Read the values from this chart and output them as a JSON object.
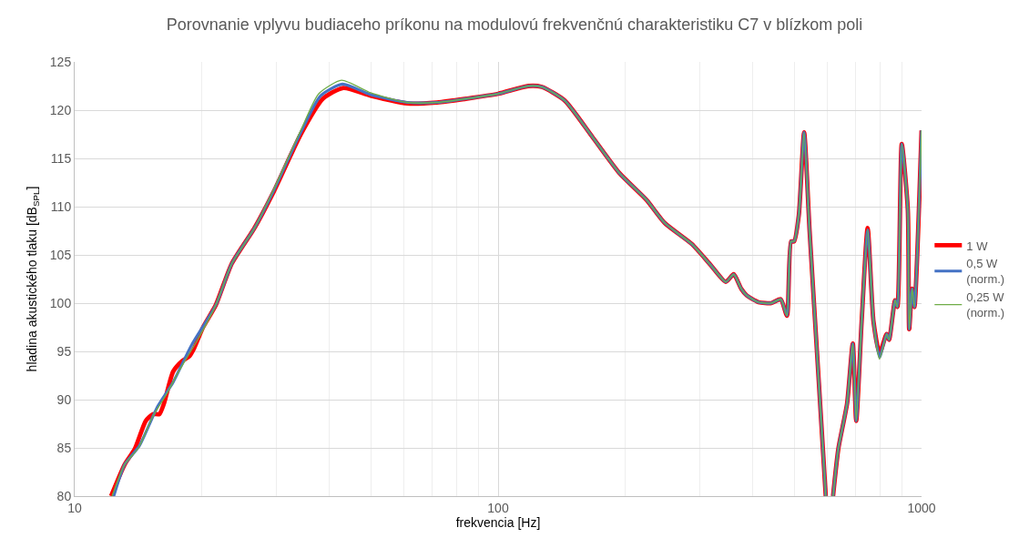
{
  "chart_data": {
    "type": "line",
    "title": "Porovnanie vplyvu budiaceho príkonu na modulovú frekvenčnú charakteristiku C7 v blízkom poli",
    "xlabel": "frekvencia [Hz]",
    "ylabel": "hladina akustického tlaku [dB$_{SPL}$]",
    "log": "x",
    "xlim": [
      10,
      1000
    ],
    "xticks": [
      10,
      100,
      1000
    ],
    "ylim": [
      80,
      125
    ],
    "yticks": [
      80,
      85,
      90,
      95,
      100,
      105,
      110,
      115,
      120,
      125
    ],
    "grid": true,
    "legend": "right",
    "line_style": "solid",
    "marker": "none",
    "series": [
      {
        "name": "1 W",
        "color": "#ff0000",
        "x": [
          12.19,
          13.13,
          13.87,
          14.72,
          15.31,
          15.85,
          16.25,
          17.08,
          17.94,
          18.66,
          19.13,
          20.1,
          21.54,
          23.5,
          26.6,
          29.4,
          34.2,
          38.6,
          43.1,
          50.0,
          61.0,
          71.7,
          84.5,
          100,
          117.8,
          126.9,
          143.6,
          166.5,
          193.2,
          224.1,
          247.5,
          287.1,
          316.9,
          345,
          360,
          375,
          386.4,
          412,
          442,
          465,
          481,
          492,
          500,
          513,
          528,
          544,
          572,
          594,
          null,
          618,
          636,
          667,
          688,
          701,
          722,
          746,
          770,
          796,
          827,
          838,
          866,
          877,
          898,
          928,
          935,
          950,
          962,
          1000
        ],
        "values": [
          80,
          83.3,
          84.9,
          87.8,
          88.5,
          88.5,
          89.6,
          92.9,
          94.0,
          94.5,
          95.3,
          97.5,
          99.8,
          104.1,
          107.8,
          111.4,
          117.5,
          121.2,
          122.3,
          121.5,
          120.7,
          120.8,
          121.2,
          121.7,
          122.5,
          122.4,
          121.0,
          117.3,
          113.5,
          110.7,
          108.3,
          106.1,
          104.0,
          102.2,
          103.0,
          101.5,
          100.8,
          100.1,
          100.0,
          100.4,
          98.7,
          106.4,
          106.4,
          109.1,
          117.7,
          107.5,
          91.8,
          80,
          null,
          80,
          84.9,
          89.6,
          95.8,
          87.8,
          98.1,
          107.8,
          98.1,
          94.8,
          96.8,
          96.2,
          100.3,
          99.6,
          116.5,
          109.7,
          97.3,
          101.5,
          99.6,
          117.9
        ]
      },
      {
        "name": "0,5 W\n(norm.)",
        "color": "#4472c4",
        "x": [
          12.37,
          13.13,
          14.21,
          15.7,
          17.08,
          18.85,
          21.54,
          23.5,
          26.6,
          29.4,
          34.2,
          38.1,
          42.9,
          50.0,
          61.0,
          71.7,
          84.5,
          100,
          117.8,
          126.9,
          143.6,
          166.5,
          193.2,
          224.1,
          247.5,
          287.1,
          316.9,
          345,
          360,
          375,
          386.4,
          412,
          442,
          465,
          481,
          492,
          500,
          513,
          528,
          544,
          572,
          594,
          null,
          618,
          636,
          667,
          688,
          701,
          722,
          746,
          770,
          796,
          827,
          838,
          866,
          877,
          898,
          928,
          935,
          950,
          962,
          1000
        ],
        "values": [
          80,
          83.3,
          85.2,
          89.3,
          91.8,
          95.6,
          99.8,
          104.1,
          107.8,
          111.5,
          117.7,
          121.5,
          122.7,
          121.6,
          120.8,
          120.8,
          121.2,
          121.7,
          122.5,
          122.4,
          121.0,
          117.3,
          113.5,
          110.7,
          108.3,
          106.1,
          104.0,
          102.2,
          103.0,
          101.5,
          100.8,
          100.1,
          100.0,
          100.4,
          98.7,
          106.4,
          106.4,
          109.1,
          117.7,
          107.5,
          91.8,
          80,
          null,
          80,
          84.9,
          89.6,
          95.8,
          87.8,
          98.1,
          107.6,
          98.1,
          94.4,
          96.8,
          96.2,
          100.3,
          99.6,
          116.5,
          109.7,
          97.3,
          101.5,
          99.6,
          117.9
        ]
      },
      {
        "name": "0,25 W\n(norm.)",
        "color": "#70ad47",
        "x": [
          12.25,
          13.13,
          14.15,
          15.31,
          16.49,
          17.5,
          18.38,
          19.51,
          21.54,
          23.5,
          26.6,
          29.4,
          34.2,
          37.7,
          42.7,
          50.0,
          61.0,
          71.7,
          84.5,
          100,
          117.8,
          126.9,
          143.6,
          166.5,
          193.2,
          224.1,
          247.5,
          287.1,
          316.9,
          345,
          360,
          375,
          386.4,
          412,
          442,
          465,
          481,
          492,
          500,
          513,
          528,
          544,
          572,
          594,
          null,
          618,
          636,
          667,
          688,
          701,
          722,
          746,
          770,
          796,
          827,
          838,
          866,
          877,
          898,
          928,
          935,
          950,
          962,
          1000
        ],
        "values": [
          80,
          83.3,
          85.0,
          88.3,
          90.6,
          92.7,
          94.3,
          96.2,
          99.8,
          104.1,
          107.8,
          111.6,
          117.9,
          121.7,
          123.1,
          121.8,
          120.8,
          120.8,
          121.2,
          121.7,
          122.5,
          122.4,
          121.0,
          117.3,
          113.5,
          110.7,
          108.3,
          106.1,
          104.0,
          102.2,
          103.0,
          101.5,
          100.8,
          100.1,
          100.0,
          100.4,
          98.7,
          106.4,
          106.4,
          109.1,
          117.7,
          107.5,
          91.8,
          80,
          null,
          80,
          84.9,
          89.6,
          95.8,
          87.8,
          98.1,
          107.6,
          98.1,
          94.2,
          96.8,
          96.2,
          100.3,
          99.6,
          116.5,
          109.7,
          97.3,
          101.5,
          99.6,
          117.9
        ]
      }
    ]
  }
}
